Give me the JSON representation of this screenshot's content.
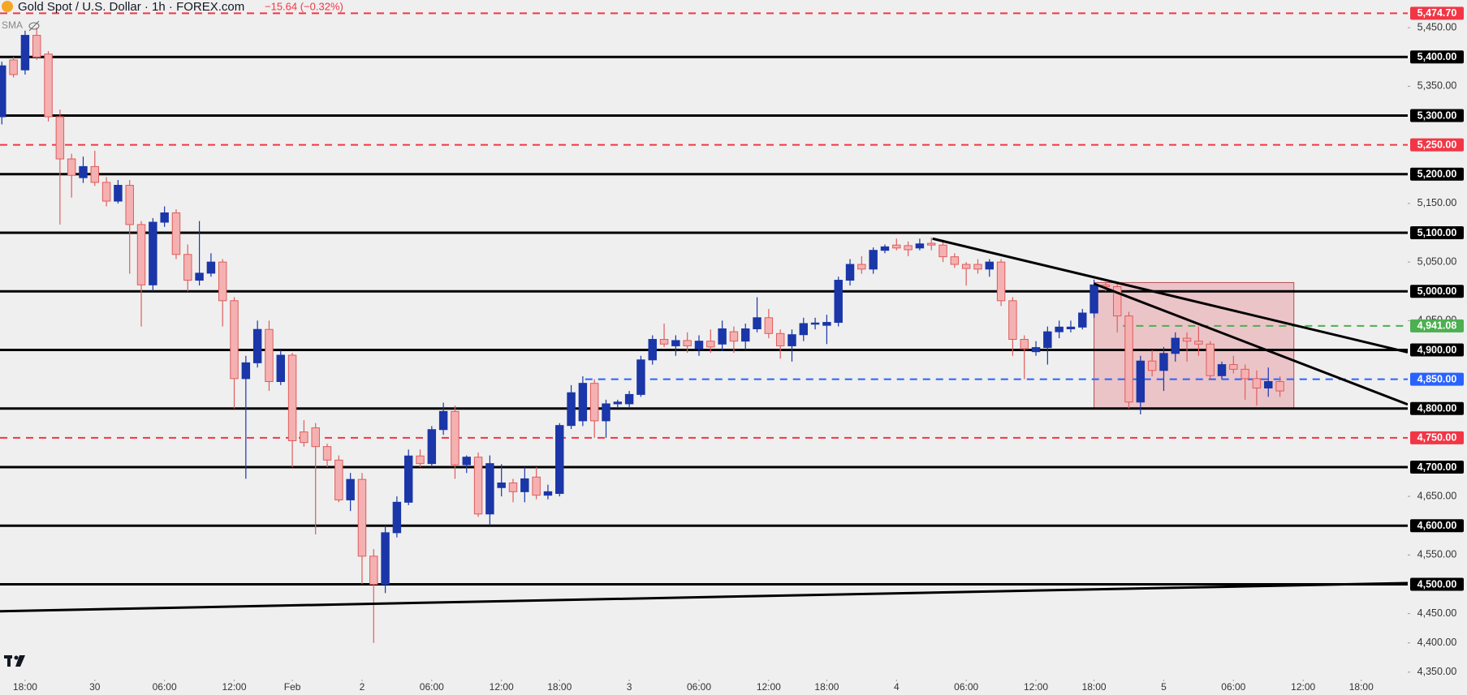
{
  "chart_data": {
    "type": "candlestick",
    "title": "Gold Spot / U.S. Dollar · 1h · FOREX.com",
    "change": "−15.64 (−0.32%)",
    "indicator": "SMA",
    "up_color": "#1a36a8",
    "down_color": "#f5b1b1",
    "down_edge": "#e05c5c",
    "open": [
      5298,
      5395,
      5378,
      5437,
      5405,
      5298,
      5226,
      5194,
      5213,
      5186,
      5154,
      5181,
      5114,
      5011,
      5118,
      5134,
      5063,
      5019,
      5031,
      5050,
      4984,
      4851,
      4878,
      4935,
      4846,
      4891,
      4760,
      4767,
      4735,
      4712,
      4644,
      4679,
      4548,
      4500,
      4588,
      4640,
      4719,
      4706,
      4764,
      4795,
      4704,
      4717,
      4620,
      4665,
      4673,
      4658,
      4683,
      4652,
      4655,
      4771,
      4779,
      4843,
      4779,
      4808,
      4808,
      4824,
      4883,
      4918,
      4907,
      4916,
      4902,
      4915,
      4910,
      4931,
      4915,
      4936,
      4955,
      4928,
      4907,
      4926,
      4944,
      4942,
      4947,
      5019,
      5046,
      5038,
      5070,
      5079,
      5078,
      5074,
      5082,
      5079,
      5059,
      5046,
      5046,
      5038,
      5050,
      4984,
      4918,
      4897,
      4904,
      4931,
      4936,
      4939,
      4963,
      5011,
      5008,
      4958,
      4811,
      4881,
      4865,
      4894,
      4920,
      4915,
      4910,
      4856,
      4875,
      4867,
      4851,
      4835,
      4846
    ],
    "high": [
      5392,
      5400,
      5445,
      5450,
      5410,
      5310,
      5235,
      5230,
      5240,
      5195,
      5190,
      5190,
      5120,
      5125,
      5145,
      5140,
      5080,
      5120,
      5065,
      5055,
      4990,
      4890,
      4950,
      4950,
      4900,
      4895,
      4780,
      4775,
      4740,
      4720,
      4690,
      4690,
      4560,
      4600,
      4650,
      4730,
      4730,
      4770,
      4810,
      4805,
      4720,
      4725,
      4720,
      4705,
      4680,
      4700,
      4700,
      4670,
      4775,
      4840,
      4855,
      4850,
      4815,
      4815,
      4830,
      4890,
      4925,
      4945,
      4925,
      4930,
      4925,
      4935,
      4950,
      4940,
      4945,
      4990,
      4970,
      4935,
      4935,
      4955,
      4955,
      4960,
      5025,
      5055,
      5060,
      5075,
      5080,
      5090,
      5085,
      5090,
      5092,
      5088,
      5065,
      5050,
      5055,
      5055,
      5055,
      4990,
      4925,
      4915,
      4940,
      4950,
      4950,
      4970,
      5020,
      5015,
      5015,
      4965,
      4890,
      4900,
      4905,
      4930,
      4930,
      4940,
      4915,
      4880,
      4890,
      4875,
      4865,
      4870,
      4855
    ],
    "low": [
      5285,
      5365,
      5370,
      5395,
      5290,
      5114,
      5160,
      5185,
      5180,
      5145,
      5150,
      5030,
      4940,
      5000,
      5110,
      5055,
      5000,
      5010,
      5025,
      4940,
      4800,
      4680,
      4870,
      4830,
      4840,
      4700,
      4735,
      4585,
      4700,
      4640,
      4625,
      4500,
      4400,
      4485,
      4580,
      4635,
      4700,
      4700,
      4755,
      4680,
      4690,
      4615,
      4600,
      4650,
      4640,
      4640,
      4645,
      4645,
      4650,
      4765,
      4770,
      4750,
      4750,
      4800,
      4800,
      4820,
      4875,
      4905,
      4890,
      4895,
      4890,
      4895,
      4898,
      4895,
      4900,
      4930,
      4920,
      4885,
      4880,
      4915,
      4935,
      4910,
      4940,
      5010,
      5030,
      5030,
      5065,
      5070,
      5060,
      5070,
      5070,
      5050,
      5040,
      5010,
      5030,
      5025,
      4975,
      4890,
      4850,
      4890,
      4875,
      4920,
      4930,
      4935,
      4955,
      5000,
      4930,
      4800,
      4790,
      4855,
      4830,
      4880,
      4880,
      4890,
      4850,
      4850,
      4860,
      4815,
      4805,
      4820,
      4820
    ],
    "close": [
      5385,
      5370,
      5437,
      5400,
      5298,
      5226,
      5198,
      5213,
      5186,
      5154,
      5181,
      5114,
      5011,
      5118,
      5134,
      5063,
      5019,
      5031,
      5050,
      4984,
      4851,
      4878,
      4935,
      4846,
      4891,
      4745,
      4742,
      4735,
      4712,
      4644,
      4679,
      4548,
      4500,
      4588,
      4640,
      4719,
      4706,
      4764,
      4795,
      4704,
      4717,
      4620,
      4706,
      4673,
      4658,
      4680,
      4652,
      4658,
      4771,
      4827,
      4843,
      4779,
      4808,
      4811,
      4824,
      4883,
      4918,
      4910,
      4916,
      4907,
      4915,
      4905,
      4936,
      4915,
      4936,
      4955,
      4928,
      4907,
      4926,
      4945,
      4946,
      4947,
      5019,
      5046,
      5038,
      5070,
      5076,
      5074,
      5071,
      5081,
      5079,
      5059,
      5046,
      5039,
      5038,
      5050,
      4984,
      4918,
      4902,
      4904,
      4931,
      4939,
      4939,
      4963,
      5011,
      5008,
      4958,
      4811,
      4881,
      4865,
      4894,
      4920,
      4915,
      4910,
      4856,
      4875,
      4867,
      4851,
      4835,
      4846,
      4830
    ],
    "xlim": [
      -0.16,
      121
    ],
    "ylim": [
      4337.3,
      5497.3
    ],
    "xticks": [
      {
        "value": 2,
        "label": "18:00"
      },
      {
        "value": 8,
        "label": "30"
      },
      {
        "value": 14,
        "label": "06:00"
      },
      {
        "value": 20,
        "label": "12:00"
      },
      {
        "value": 25,
        "label": "Feb"
      },
      {
        "value": 31,
        "label": "2"
      },
      {
        "value": 37,
        "label": "06:00"
      },
      {
        "value": 43,
        "label": "12:00"
      },
      {
        "value": 48,
        "label": "18:00"
      },
      {
        "value": 54,
        "label": "3"
      },
      {
        "value": 60,
        "label": "06:00"
      },
      {
        "value": 66,
        "label": "12:00"
      },
      {
        "value": 71,
        "label": "18:00"
      },
      {
        "value": 77,
        "label": "4"
      },
      {
        "value": 83,
        "label": "06:00"
      },
      {
        "value": 89,
        "label": "12:00"
      },
      {
        "value": 94,
        "label": "18:00"
      },
      {
        "value": 100,
        "label": "5"
      },
      {
        "value": 106,
        "label": "06:00"
      },
      {
        "value": 112,
        "label": "12:00"
      },
      {
        "value": 117,
        "label": "18:00"
      }
    ],
    "yticks": [
      {
        "value": 5450,
        "label": "5,450.00"
      },
      {
        "value": 5350,
        "label": "5,350.00"
      },
      {
        "value": 5150,
        "label": "5,150.00"
      },
      {
        "value": 5050,
        "label": "5,050.00"
      },
      {
        "value": 4950,
        "label": "4,950.00"
      },
      {
        "value": 4650,
        "label": "4,650.00"
      },
      {
        "value": 4550,
        "label": "4,550.00"
      },
      {
        "value": 4450,
        "label": "4,450.00"
      },
      {
        "value": 4400,
        "label": "4,400.00"
      },
      {
        "value": 4350,
        "label": "4,350.00"
      }
    ],
    "levels": [
      {
        "value": 5474.7,
        "label": "5,474.70",
        "color": "#f23645",
        "style": "dashed"
      },
      {
        "value": 5400,
        "label": "5,400.00",
        "color": "#000000",
        "style": "solid"
      },
      {
        "value": 5300,
        "label": "5,300.00",
        "color": "#000000",
        "style": "solid"
      },
      {
        "value": 5250,
        "label": "5,250.00",
        "color": "#f23645",
        "style": "dashed"
      },
      {
        "value": 5200,
        "label": "5,200.00",
        "color": "#000000",
        "style": "solid"
      },
      {
        "value": 5100,
        "label": "5,100.00",
        "color": "#000000",
        "style": "solid"
      },
      {
        "value": 5000,
        "label": "5,000.00",
        "color": "#000000",
        "style": "solid"
      },
      {
        "value": 4941.08,
        "label": "4,941.08",
        "color": "#4caf50",
        "style": "dashed",
        "start": 96.5
      },
      {
        "value": 4900,
        "label": "4,900.00",
        "color": "#000000",
        "style": "solid"
      },
      {
        "value": 4850,
        "label": "4,850.00",
        "color": "#2962ff",
        "style": "dashed",
        "start": 50.2
      },
      {
        "value": 4800,
        "label": "4,800.00",
        "color": "#000000",
        "style": "solid"
      },
      {
        "value": 4750,
        "label": "4,750.00",
        "color": "#f23645",
        "style": "dashed"
      },
      {
        "value": 4700,
        "label": "4,700.00",
        "color": "#000000",
        "style": "solid"
      },
      {
        "value": 4600,
        "label": "4,600.00",
        "color": "#000000",
        "style": "solid"
      },
      {
        "value": 4500,
        "label": "4,500.00",
        "color": "#000000",
        "style": "solid"
      }
    ],
    "trendlines": [
      {
        "x": [
          80.1,
          121
        ],
        "y": [
          5090,
          4896
        ]
      },
      {
        "x": [
          94,
          121
        ],
        "y": [
          5013,
          4807
        ]
      },
      {
        "x": [
          -0.16,
          121
        ],
        "y": [
          4454,
          4502
        ]
      }
    ],
    "zones": [
      {
        "x": [
          94,
          111.2
        ],
        "y": [
          4800,
          5015
        ],
        "color": "#e8a0a8"
      }
    ]
  }
}
